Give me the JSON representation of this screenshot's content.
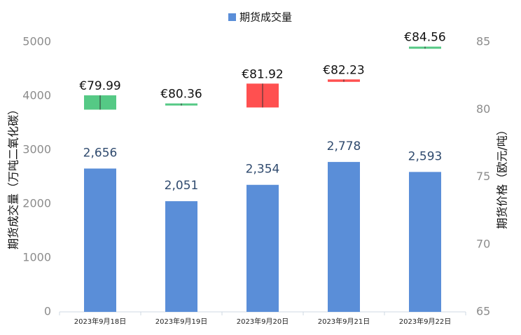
{
  "chart_data": {
    "type": "bar",
    "categories": [
      "2023年9月18日",
      "2023年9月19日",
      "2023年9月20日",
      "2023年9月21日",
      "2023年9月22日"
    ],
    "series": [
      {
        "name": "期货成交量",
        "color": "#5a8ed8",
        "values": [
          2656,
          2051,
          2354,
          2778,
          2593
        ],
        "value_labels": [
          "2,656",
          "2,051",
          "2,354",
          "2,778",
          "2,593"
        ]
      },
      {
        "type": "candlestick",
        "axis": "y2",
        "up_color": "#ff5050",
        "down_color": "#55c985",
        "open": [
          81.05,
          80.45,
          80.15,
          82.05,
          84.66
        ],
        "close": [
          79.99,
          80.36,
          81.92,
          82.23,
          84.56
        ],
        "value_labels": [
          "€79.99",
          "€80.36",
          "€81.92",
          "€82.23",
          "€84.56"
        ]
      }
    ],
    "ylabel": "期货成交量（万吨二氧化碳）",
    "y2label": "期货价格（欧元/吨）",
    "ylim": [
      0,
      5000
    ],
    "yticks": [
      0,
      1000,
      2000,
      3000,
      4000,
      5000
    ],
    "y2lim": [
      65,
      85
    ],
    "y2ticks": [
      65,
      70,
      75,
      80,
      85
    ],
    "legend": "top",
    "grid": false
  }
}
